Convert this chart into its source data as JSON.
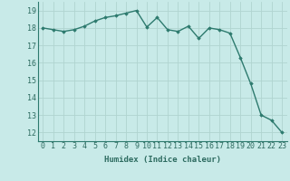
{
  "x": [
    0,
    1,
    2,
    3,
    4,
    5,
    6,
    7,
    8,
    9,
    10,
    11,
    12,
    13,
    14,
    15,
    16,
    17,
    18,
    19,
    20,
    21,
    22,
    23
  ],
  "y": [
    18.0,
    17.9,
    17.8,
    17.9,
    18.1,
    18.4,
    18.6,
    18.7,
    18.85,
    19.0,
    18.05,
    18.6,
    17.9,
    17.8,
    18.1,
    17.4,
    18.0,
    17.9,
    17.7,
    16.3,
    14.8,
    13.0,
    12.7,
    12.0
  ],
  "xlabel": "Humidex (Indice chaleur)",
  "ylim": [
    11.5,
    19.5
  ],
  "xlim": [
    -0.5,
    23.5
  ],
  "yticks": [
    12,
    13,
    14,
    15,
    16,
    17,
    18,
    19
  ],
  "xticks": [
    0,
    1,
    2,
    3,
    4,
    5,
    6,
    7,
    8,
    9,
    10,
    11,
    12,
    13,
    14,
    15,
    16,
    17,
    18,
    19,
    20,
    21,
    22,
    23
  ],
  "line_color": "#2d7a6e",
  "marker": "D",
  "marker_size": 1.8,
  "line_width": 1.0,
  "bg_color": "#c8eae8",
  "grid_color": "#b0d4d0",
  "tick_label_color": "#2d6b60",
  "xlabel_color": "#2d6b60",
  "xlabel_fontsize": 6.5,
  "tick_fontsize": 6.0
}
